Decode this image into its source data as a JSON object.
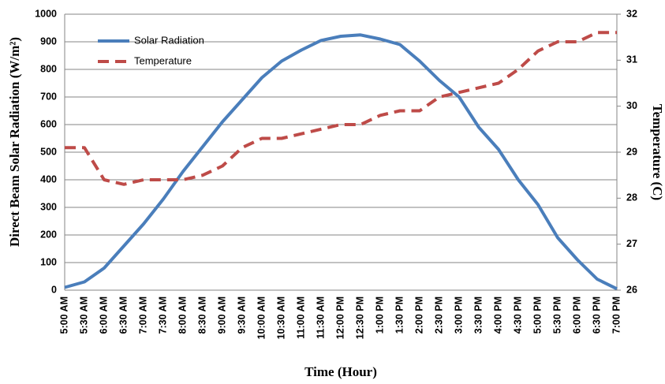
{
  "chart_data": {
    "type": "line",
    "y_label": "Direct Beam Solar Radiation (W/m²)",
    "y2_label": "Temperature (C)",
    "x_label": "Time (Hour)",
    "categories": [
      "5:00 AM",
      "5:30 AM",
      "6:00 AM",
      "6:30 AM",
      "7:00 AM",
      "7:30 AM",
      "8:00 AM",
      "8:30 AM",
      "9:00 AM",
      "9:30 AM",
      "10:00 AM",
      "10:30 AM",
      "11:00 AM",
      "11:30 AM",
      "12:00 PM",
      "12:30 PM",
      "1:00 PM",
      "1:30 PM",
      "2:00 PM",
      "2:30 PM",
      "3:00 PM",
      "3:30 PM",
      "4:00 PM",
      "4:30 PM",
      "5:00 PM",
      "5:30 PM",
      "6:00 PM",
      "6:30 PM",
      "7:00 PM"
    ],
    "series": [
      {
        "name": "Solar Radiation",
        "color": "#4a7ebb",
        "dash": false,
        "values": [
          10,
          30,
          80,
          160,
          240,
          330,
          430,
          520,
          610,
          690,
          770,
          830,
          870,
          905,
          920,
          925,
          910,
          890,
          830,
          760,
          700,
          590,
          510,
          400,
          310,
          190,
          110,
          40,
          5
        ]
      },
      {
        "name": "Temperature",
        "color": "#be4b48",
        "dash": true,
        "axis": "y2",
        "values": [
          29.1,
          29.1,
          28.4,
          28.3,
          28.4,
          28.4,
          28.4,
          28.5,
          28.7,
          29.1,
          29.3,
          29.3,
          29.4,
          29.5,
          29.6,
          29.6,
          29.8,
          29.9,
          29.9,
          30.2,
          30.3,
          30.4,
          30.5,
          30.8,
          31.2,
          31.4,
          31.4,
          31.6,
          31.6
        ]
      }
    ],
    "ylim": [
      0,
      1000
    ],
    "yticks": [
      0,
      100,
      200,
      300,
      400,
      500,
      600,
      700,
      800,
      900,
      1000
    ],
    "y2lim": [
      26,
      32
    ],
    "y2ticks": [
      26,
      27,
      28,
      29,
      30,
      31,
      32
    ],
    "grid": true,
    "legend": "upper-left"
  }
}
